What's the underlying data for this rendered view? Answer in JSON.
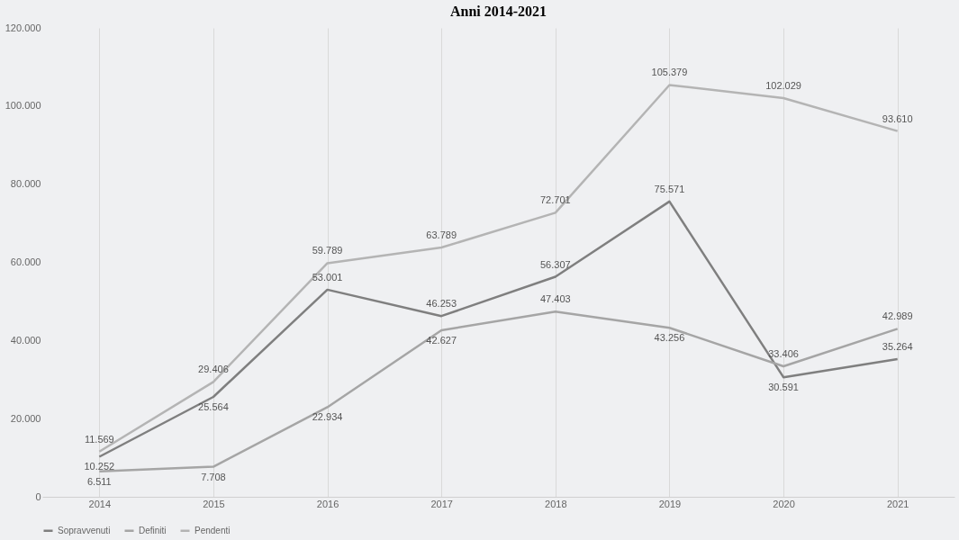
{
  "chart_data": {
    "type": "line",
    "title": "Anni 2014-2021",
    "categories": [
      "2014",
      "2015",
      "2016",
      "2017",
      "2018",
      "2019",
      "2020",
      "2021"
    ],
    "series": [
      {
        "name": "Sopravvenuti",
        "color": "#7f7f7f",
        "values": [
          10252,
          25564,
          53001,
          46253,
          56307,
          75571,
          30591,
          35264
        ],
        "value_labels": [
          "10.252",
          "25.564",
          "53.001",
          "46.253",
          "56.307",
          "75.571",
          "30.591",
          "35.264"
        ]
      },
      {
        "name": "Definiti",
        "color": "#a5a5a5",
        "values": [
          6511,
          7708,
          22934,
          42627,
          47403,
          43256,
          33406,
          42989
        ],
        "value_labels": [
          "6.511",
          "7.708",
          "22.934",
          "42.627",
          "47.403",
          "43.256",
          "33.406",
          "42.989"
        ]
      },
      {
        "name": "Pendenti",
        "color": "#b4b4b4",
        "values": [
          11569,
          29406,
          59789,
          63789,
          72701,
          105379,
          102029,
          93610
        ],
        "value_labels": [
          "11.569",
          "29.406",
          "59.789",
          "63.789",
          "72.701",
          "105.379",
          "102.029",
          "93.610"
        ]
      }
    ],
    "ylim": [
      0,
      120000
    ],
    "yticks": [
      {
        "value": 0,
        "label": "0"
      },
      {
        "value": 20000,
        "label": "20.000"
      },
      {
        "value": 40000,
        "label": "40.000"
      },
      {
        "value": 60000,
        "label": "60.000"
      },
      {
        "value": 80000,
        "label": "80.000"
      },
      {
        "value": 100000,
        "label": "100.000"
      },
      {
        "value": 120000,
        "label": "120.000"
      }
    ],
    "grid": "x",
    "legend": "bottom",
    "marker": "none",
    "line_style": "solid"
  }
}
